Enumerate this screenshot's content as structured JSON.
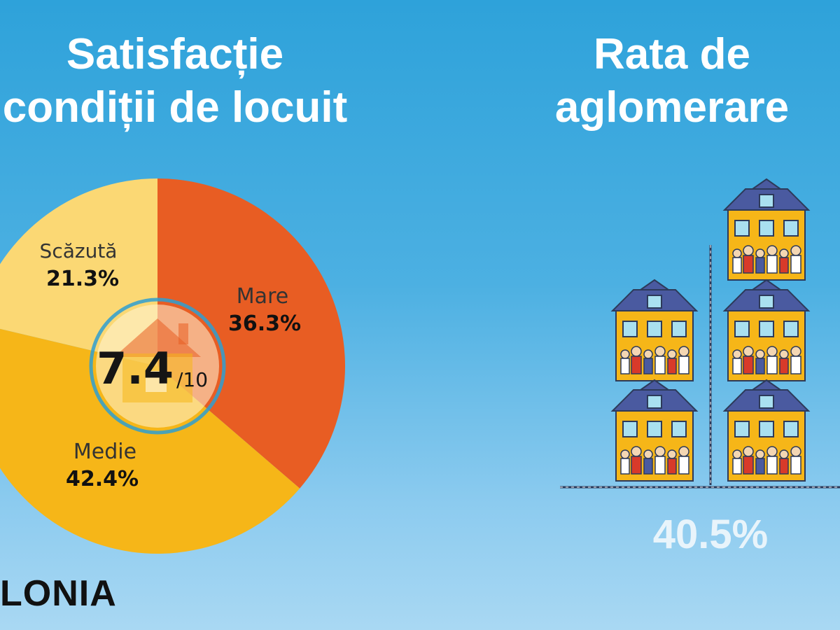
{
  "left_title": [
    "Satisfacție",
    "condiții de locuit"
  ],
  "right_title": [
    "Rata de",
    "aglomerare"
  ],
  "bottom_label": "LONIA",
  "chart_data": [
    {
      "type": "pie",
      "title": "Satisfacție condiții de locuit",
      "categories": [
        "Mare",
        "Medie",
        "Scăzută"
      ],
      "values": [
        36.3,
        42.4,
        21.3
      ],
      "labels": [
        "36.3%",
        "42.4%",
        "21.3%"
      ],
      "colors": [
        "#e85d23",
        "#f6b618",
        "#fbd874"
      ],
      "center": {
        "score": "7.4",
        "scale": "/10"
      }
    },
    {
      "type": "bar",
      "title": "Rata de aglomerare",
      "value_label": "40.5%",
      "value": 40.5
    }
  ],
  "icons": [
    "house-center-icon",
    "crowded-house-icon"
  ]
}
